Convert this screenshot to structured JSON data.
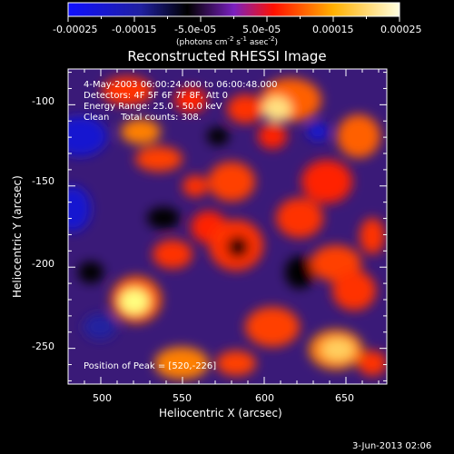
{
  "colorbar": {
    "ticks": [
      "-0.00025",
      "-0.00015",
      "-5.0e-05",
      "5.0e-05",
      "0.00015",
      "0.00025"
    ],
    "unit_prefix": "(photons cm",
    "unit_exp1": "-2",
    "unit_mid1": " s",
    "unit_exp2": "-1",
    "unit_mid2": " asec",
    "unit_exp3": "-2",
    "unit_suffix": ")",
    "colors": [
      "#1010ff",
      "#000000",
      "#7a20c0",
      "#ff2000",
      "#ffb000",
      "#ffffe0"
    ]
  },
  "chart_data": {
    "type": "heatmap",
    "title": "Reconstructed RHESSI Image",
    "xlabel": "Heliocentric X (arcsec)",
    "ylabel": "Heliocentric Y (arcsec)",
    "xlim": [
      480,
      675
    ],
    "ylim": [
      -272,
      -78
    ],
    "xticks": [
      500,
      550,
      600,
      650
    ],
    "yticks": [
      -100,
      -150,
      -200,
      -250
    ],
    "annotations": [
      "4-May-2003 06:00:24.000 to 06:00:48.000",
      "Detectors: 4F 5F 6F 7F 8F, Att 0",
      "Energy Range: 25.0 - 50.0 keV",
      "Clean    Total counts: 308.",
      "Position of Peak = [520,-226]"
    ],
    "peak": [
      520,
      -226
    ],
    "value_range": [
      -0.00025,
      0.00025
    ]
  },
  "footer": {
    "date": "3-Jun-2013 02:06"
  }
}
